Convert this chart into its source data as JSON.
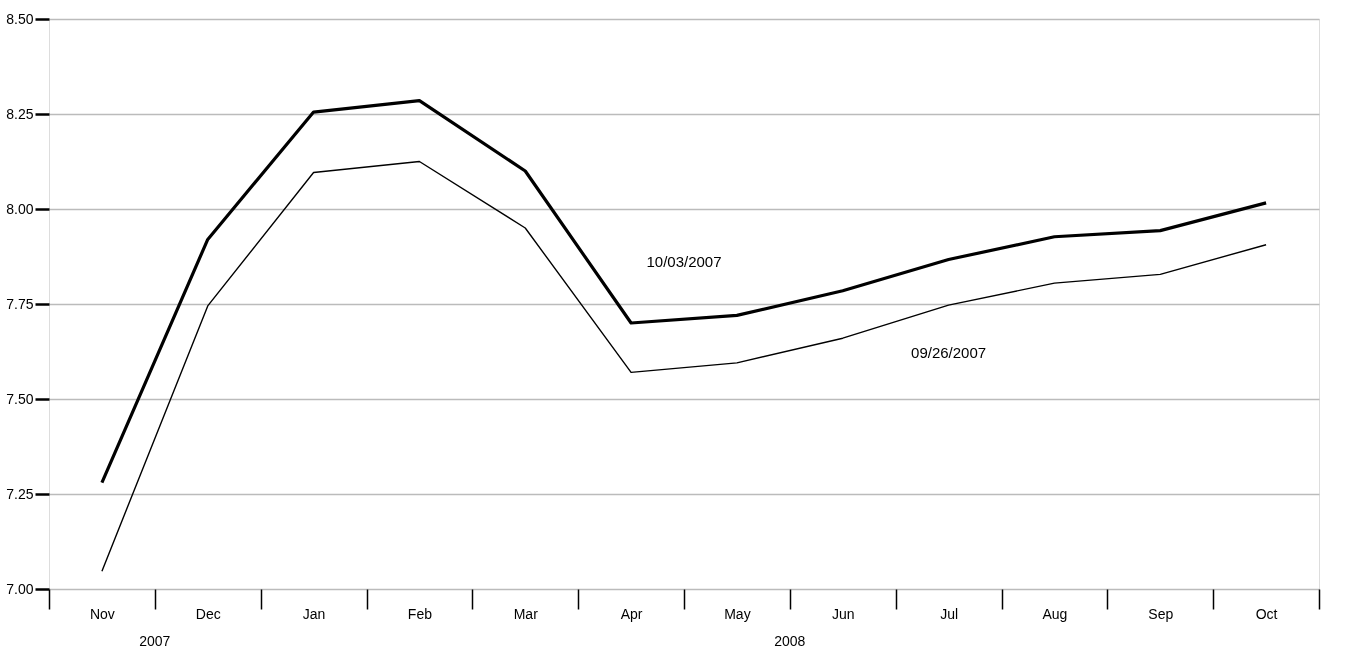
{
  "chart_data": {
    "type": "line",
    "categories": [
      "Nov",
      "Dec",
      "Jan",
      "Feb",
      "Mar",
      "Apr",
      "May",
      "Jun",
      "Jul",
      "Aug",
      "Sep",
      "Oct"
    ],
    "series": [
      {
        "name": "10/03/2007",
        "color": "#000000",
        "values": [
          7.28,
          7.92,
          8.255,
          8.285,
          8.1,
          7.7,
          7.72,
          7.785,
          7.867,
          7.927,
          7.943,
          8.016
        ]
      },
      {
        "name": "09/26/2007",
        "color": "#000000",
        "values": [
          7.047,
          7.745,
          8.096,
          8.125,
          7.95,
          7.57,
          7.595,
          7.66,
          7.747,
          7.805,
          7.828,
          7.906
        ]
      }
    ],
    "ylim": [
      7.0,
      8.5
    ],
    "yticks": [
      {
        "value": 7.0,
        "label": "7.00"
      },
      {
        "value": 7.25,
        "label": "7.25"
      },
      {
        "value": 7.5,
        "label": "7.50"
      },
      {
        "value": 7.75,
        "label": "7.75"
      },
      {
        "value": 8.0,
        "label": "8.00"
      },
      {
        "value": 8.25,
        "label": "8.25"
      },
      {
        "value": 8.5,
        "label": "8.50"
      }
    ],
    "grid": "y",
    "marker": "none",
    "line_style": "solid",
    "annotations": [
      "2007",
      "2008"
    ]
  }
}
